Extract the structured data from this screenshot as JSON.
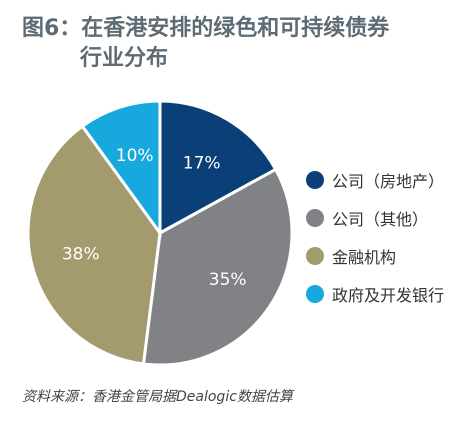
{
  "title": {
    "line1": "图6：在香港安排的绿色和可持续债券",
    "line2": "行业分布"
  },
  "chart_data": {
    "type": "pie",
    "slices": [
      {
        "label": "公司（房地产）",
        "value": 17,
        "value_label": "17%",
        "color": "#0b3f78"
      },
      {
        "label": "公司（其他）",
        "value": 35,
        "value_label": "35%",
        "color": "#808285"
      },
      {
        "label": "金融机构",
        "value": 38,
        "value_label": "38%",
        "color": "#a39a6d"
      },
      {
        "label": "政府及开发银行",
        "value": 10,
        "value_label": "10%",
        "color": "#17a8de"
      }
    ],
    "legend_position": "right"
  },
  "source": "资料来源：香港金管局据Dealogic数据估算"
}
